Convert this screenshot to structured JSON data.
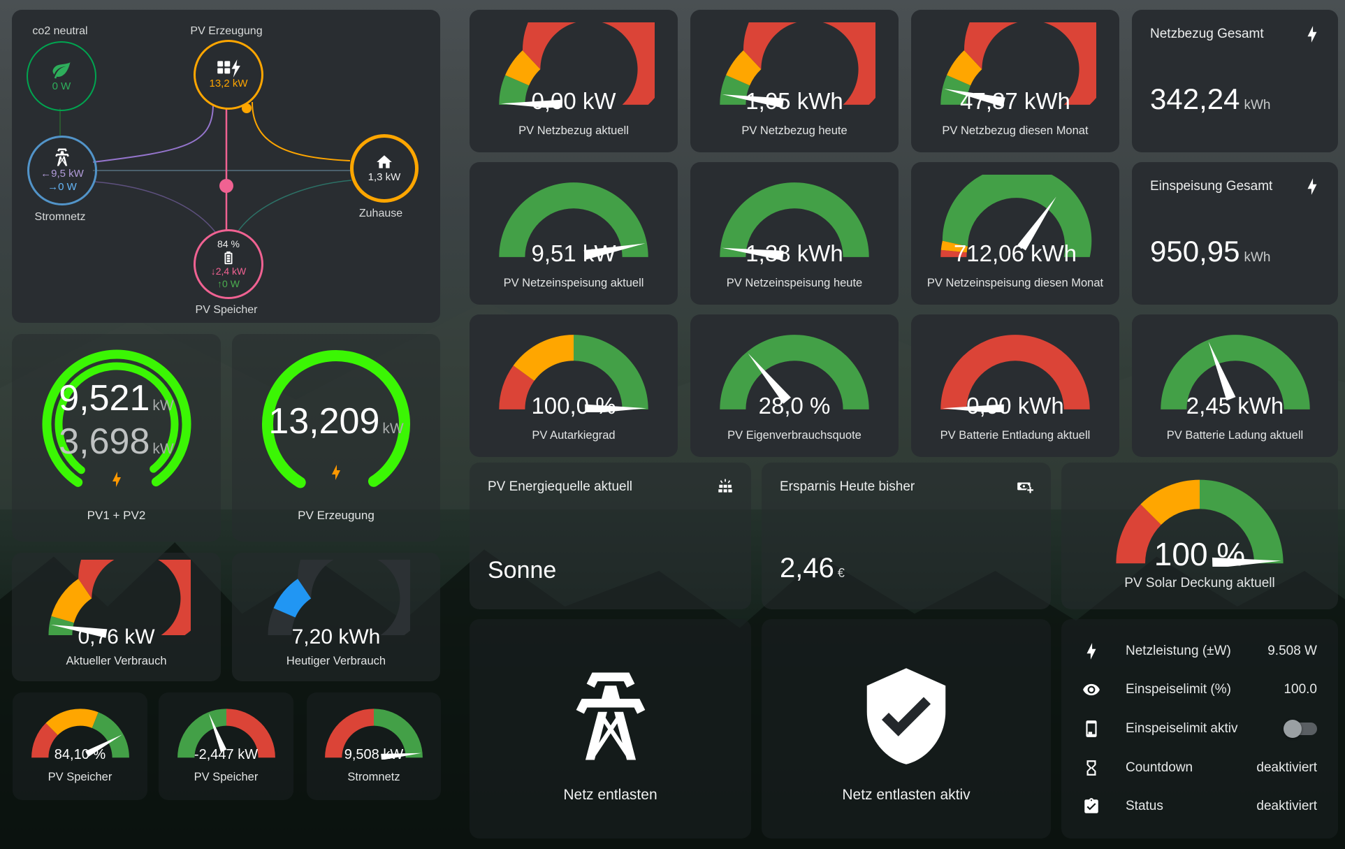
{
  "colors": {
    "green": "#43a047",
    "orange": "#ffa600",
    "red": "#db4437",
    "blue": "#2196f3",
    "dark": "#2c3134",
    "neon": "#3bf604",
    "needle": "#ffffff",
    "pink": "#f06292",
    "purple": "#b39ddb",
    "gridblue": "#64b5f6",
    "co2green": "#00a550",
    "gridcircle": "#5294c9",
    "homeorange": "#ffa600"
  },
  "segments": {
    "bezug": [
      [
        0,
        0.13,
        "green"
      ],
      [
        0.13,
        0.26,
        "orange"
      ],
      [
        0.26,
        1,
        "red"
      ]
    ],
    "green": [
      [
        0,
        1,
        "green"
      ]
    ],
    "monat": [
      [
        0,
        0.03,
        "red"
      ],
      [
        0.03,
        0.07,
        "orange"
      ],
      [
        0.07,
        1,
        "green"
      ]
    ],
    "autarkie": [
      [
        0,
        0.2,
        "red"
      ],
      [
        0.2,
        0.5,
        "orange"
      ],
      [
        0.5,
        1,
        "green"
      ]
    ],
    "red": [
      [
        0,
        1,
        "red"
      ]
    ],
    "verbrauch": [
      [
        0,
        0.09,
        "green"
      ],
      [
        0.09,
        0.31,
        "orange"
      ],
      [
        0.31,
        1,
        "red"
      ]
    ],
    "heute": [
      [
        0,
        0.13,
        "dark"
      ],
      [
        0.13,
        0.31,
        "blue"
      ],
      [
        0.31,
        1,
        "dark"
      ]
    ],
    "soc": [
      [
        0,
        0.25,
        "red"
      ],
      [
        0.25,
        0.62,
        "orange"
      ],
      [
        0.62,
        1,
        "green"
      ]
    ],
    "batpower": [
      [
        0,
        0.5,
        "green"
      ],
      [
        0.5,
        1,
        "red"
      ]
    ],
    "netz": [
      [
        0,
        0.5,
        "red"
      ],
      [
        0.5,
        1,
        "green"
      ]
    ],
    "deckung": [
      [
        0,
        0.25,
        "red"
      ],
      [
        0.25,
        0.5,
        "orange"
      ],
      [
        0.5,
        1,
        "green"
      ]
    ]
  },
  "gauges": [
    {
      "value": "0,00 kW",
      "label": "PV Netzbezug aktuell",
      "needle": 0.005,
      "seg": "bezug"
    },
    {
      "value": "1,05 kWh",
      "label": "PV Netzbezug heute",
      "needle": 0.045,
      "seg": "bezug"
    },
    {
      "value": "47,87 kWh",
      "label": "PV Netzbezug diesen Monat",
      "needle": 0.07,
      "seg": "bezug"
    },
    {
      "value": "9,51 kW",
      "label": "PV Netzeinspeisung aktuell",
      "needle": 0.94,
      "seg": "green"
    },
    {
      "value": "1,38 kWh",
      "label": "PV Netzeinspeisung heute",
      "needle": 0.04,
      "seg": "green"
    },
    {
      "value": "712,06 kWh",
      "label": "PV Netzeinspeisung diesen Monat",
      "needle": 0.69,
      "seg": "monat"
    },
    {
      "value": "100,0 %",
      "label": "PV Autarkiegrad",
      "needle": 0.995,
      "seg": "autarkie"
    },
    {
      "value": "28,0 %",
      "label": "PV Eigenverbrauchsquote",
      "needle": 0.28,
      "seg": "green"
    },
    {
      "value": "0,00 kWh",
      "label": "PV Batterie Entladung aktuell",
      "needle": 0.005,
      "seg": "red"
    },
    {
      "value": "2,45 kWh",
      "label": "PV Batterie Ladung aktuell",
      "needle": 0.38,
      "seg": "green"
    },
    {
      "value": "0,76 kW",
      "label": "Aktueller Verbrauch",
      "needle": 0.05,
      "seg": "verbrauch"
    },
    {
      "value": "7,20 kWh",
      "label": "Heutiger Verbrauch",
      "needle": null,
      "seg": "heute"
    },
    {
      "value": "84,10 %",
      "label": "PV Speicher",
      "needle": 0.84,
      "seg": "soc"
    },
    {
      "value": "-2,447 kW",
      "label": "PV Speicher",
      "needle": 0.38,
      "seg": "batpower"
    },
    {
      "value": "9,508 kW",
      "label": "Stromnetz",
      "needle": 0.97,
      "seg": "netz"
    },
    {
      "value": "100 %",
      "label": "PV Solar Deckung aktuell",
      "needle": 0.99,
      "seg": "deckung"
    }
  ],
  "flow": {
    "co2": {
      "label": "co2 neutral",
      "value": "0 W"
    },
    "pv": {
      "label": "PV Erzeugung",
      "value": "13,2 kW"
    },
    "grid": {
      "label": "Stromnetz",
      "value_in": "←9,5 kW",
      "value_out": "→0 W"
    },
    "home": {
      "label": "Zuhause",
      "value": "1,3 kW"
    },
    "battery": {
      "label": "PV Speicher",
      "soc": "84 %",
      "down": "↓2,4 kW",
      "up": "↑0 W"
    }
  },
  "rings": [
    {
      "value1": "9,521",
      "unit1": "kW",
      "value2": "3,698",
      "unit2": "kW",
      "label": "PV1 + PV2"
    },
    {
      "value1": "13,209",
      "unit1": "kW",
      "label": "PV Erzeugung"
    }
  ],
  "totals": [
    {
      "title": "Netzbezug Gesamt",
      "value": "342,24",
      "unit": "kWh"
    },
    {
      "title": "Einspeisung Gesamt",
      "value": "950,95",
      "unit": "kWh"
    }
  ],
  "info": {
    "source": {
      "title": "PV Energiequelle aktuell",
      "value": "Sonne"
    },
    "savings": {
      "title": "Ersparnis Heute bisher",
      "value": "2,46",
      "unit": "€"
    }
  },
  "actions": [
    {
      "label": "Netz entlasten"
    },
    {
      "label": "Netz entlasten aktiv"
    }
  ],
  "settings": {
    "rows": [
      {
        "icon": "lightning-bolt",
        "label": "Netzleistung (±W)",
        "value": "9.508 W"
      },
      {
        "icon": "eye",
        "label": "Einspeiselimit (%)",
        "value": "100.0"
      },
      {
        "icon": "phone",
        "label": "Einspeiselimit aktiv",
        "toggle": false
      },
      {
        "icon": "hourglass",
        "label": "Countdown",
        "value": "deaktiviert"
      },
      {
        "icon": "clipboard-check",
        "label": "Status",
        "value": "deaktiviert"
      }
    ]
  }
}
